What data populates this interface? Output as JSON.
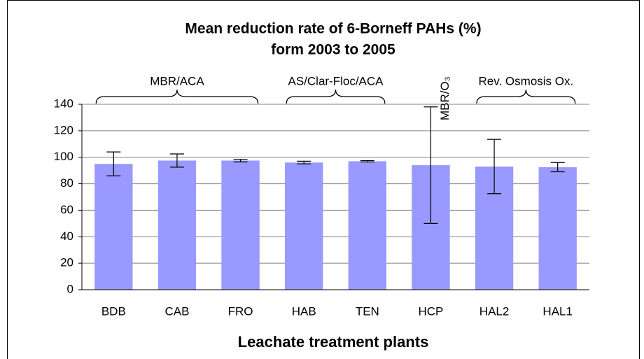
{
  "chart_data": {
    "type": "bar",
    "title": [
      "Mean reduction rate of 6-Borneff PAHs (%)",
      "form 2003 to 2005"
    ],
    "x_label": "Leachate treatment plants",
    "categories": [
      "BDB",
      "CAB",
      "FRO",
      "HAB",
      "TEN",
      "HCP",
      "HAL2",
      "HAL1"
    ],
    "values": [
      95,
      97.5,
      97.5,
      96,
      97,
      94,
      93,
      92.5
    ],
    "errors": [
      9,
      5,
      1,
      1,
      0.5,
      44,
      20.5,
      3.5
    ],
    "color": "#9999ff",
    "ylim": [
      0,
      140
    ],
    "yticks": [
      0,
      20,
      40,
      60,
      80,
      100,
      120,
      140
    ],
    "grid": true,
    "annotations": [
      {
        "text": "MBR/ACA",
        "from": "BDB",
        "to": "FRO"
      },
      {
        "text": "AS/Clar-Floc/ACA",
        "from": "HAB",
        "to": "TEN"
      },
      {
        "text": "MBR/O₃",
        "from": "HCP",
        "to": "HCP"
      },
      {
        "text": "Rev. Osmosis Ox.",
        "from": "HAL2",
        "to": "HAL1"
      }
    ]
  }
}
